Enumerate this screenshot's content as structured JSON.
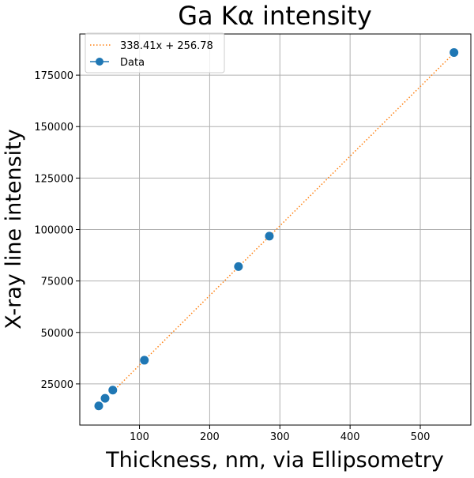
{
  "chart_data": {
    "type": "scatter",
    "title": "Ga Kα intensity",
    "xlabel": "Thickness, nm, via Ellipsometry",
    "ylabel": "X-ray line intensity",
    "xlim": [
      15,
      572
    ],
    "ylim": [
      5000,
      195000
    ],
    "xticks": [
      100,
      200,
      300,
      400,
      500
    ],
    "yticks": [
      25000,
      50000,
      75000,
      100000,
      125000,
      150000,
      175000
    ],
    "grid": true,
    "legend_position": "top-left",
    "series": [
      {
        "name": "Data",
        "kind": "scatter-with-errorbars",
        "color": "#1f77b4",
        "x": [
          42,
          51,
          62,
          107,
          241,
          285,
          548
        ],
        "y": [
          14300,
          18000,
          22000,
          36500,
          82000,
          96800,
          186000
        ]
      },
      {
        "name": "338.41x + 256.78",
        "kind": "fit-line",
        "color": "#ff7f0e",
        "style": "dotted",
        "slope": 338.41,
        "intercept": 256.78,
        "x_range": [
          62,
          548
        ]
      }
    ]
  }
}
